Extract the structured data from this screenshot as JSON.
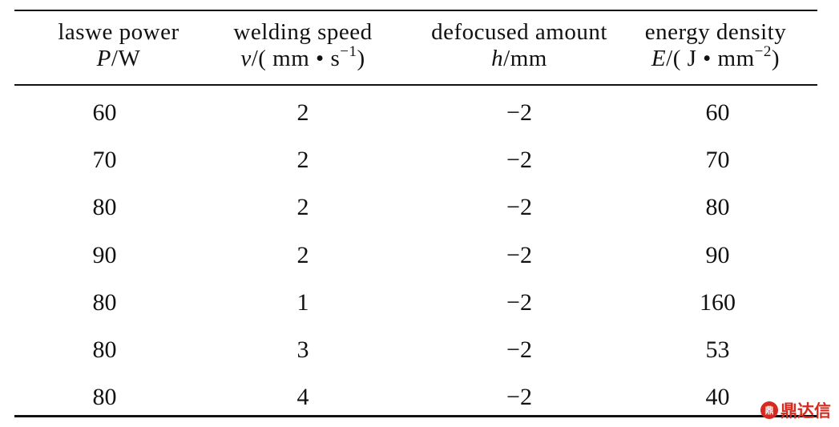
{
  "table": {
    "headers": [
      {
        "name": "laswe power",
        "symbol": "P",
        "unit": "/W",
        "sup": ""
      },
      {
        "name": "welding speed",
        "symbol": "v",
        "unit": "/( mm • s",
        "sup": "−1",
        "close": ")"
      },
      {
        "name": "defocused amount",
        "symbol": "h",
        "unit": "/mm",
        "sup": ""
      },
      {
        "name": "energy density",
        "symbol": "E",
        "unit": "/( J • mm",
        "sup": "−2",
        "close": ")"
      }
    ],
    "rows": [
      [
        "60",
        "2",
        "−2",
        "60"
      ],
      [
        "70",
        "2",
        "−2",
        "70"
      ],
      [
        "80",
        "2",
        "−2",
        "80"
      ],
      [
        "90",
        "2",
        "−2",
        "90"
      ],
      [
        "80",
        "1",
        "−2",
        "160"
      ],
      [
        "80",
        "3",
        "−2",
        "53"
      ],
      [
        "80",
        "4",
        "−2",
        "40"
      ]
    ]
  },
  "watermark": {
    "text": "鼎达信",
    "mark": "鼎",
    "color": "#d42a1f"
  }
}
